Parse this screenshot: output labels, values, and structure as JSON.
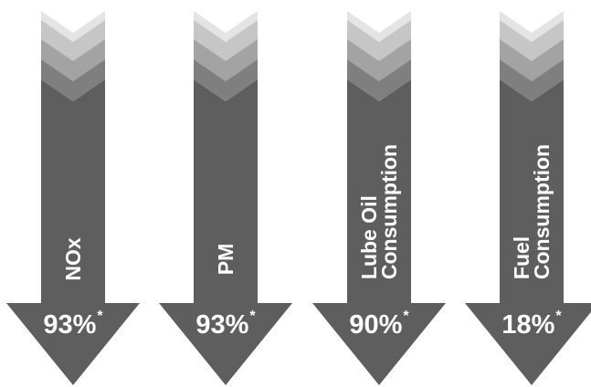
{
  "colors": {
    "body": "#5e5e5f",
    "chevron_1": "#e4e4e4",
    "chevron_2": "#c6c6c6",
    "chevron_3": "#a3a3a4",
    "chevron_4": "#7f7f80",
    "text": "#ffffff"
  },
  "arrows": [
    {
      "label_lines": [
        "NOx"
      ],
      "value": "93%",
      "footnote": "*"
    },
    {
      "label_lines": [
        "PM"
      ],
      "value": "93%",
      "footnote": "*"
    },
    {
      "label_lines": [
        "Lube Oil",
        "Consumption"
      ],
      "value": "90%",
      "footnote": "*"
    },
    {
      "label_lines": [
        "Fuel",
        "Consumption"
      ],
      "value": "18%",
      "footnote": "*"
    }
  ]
}
